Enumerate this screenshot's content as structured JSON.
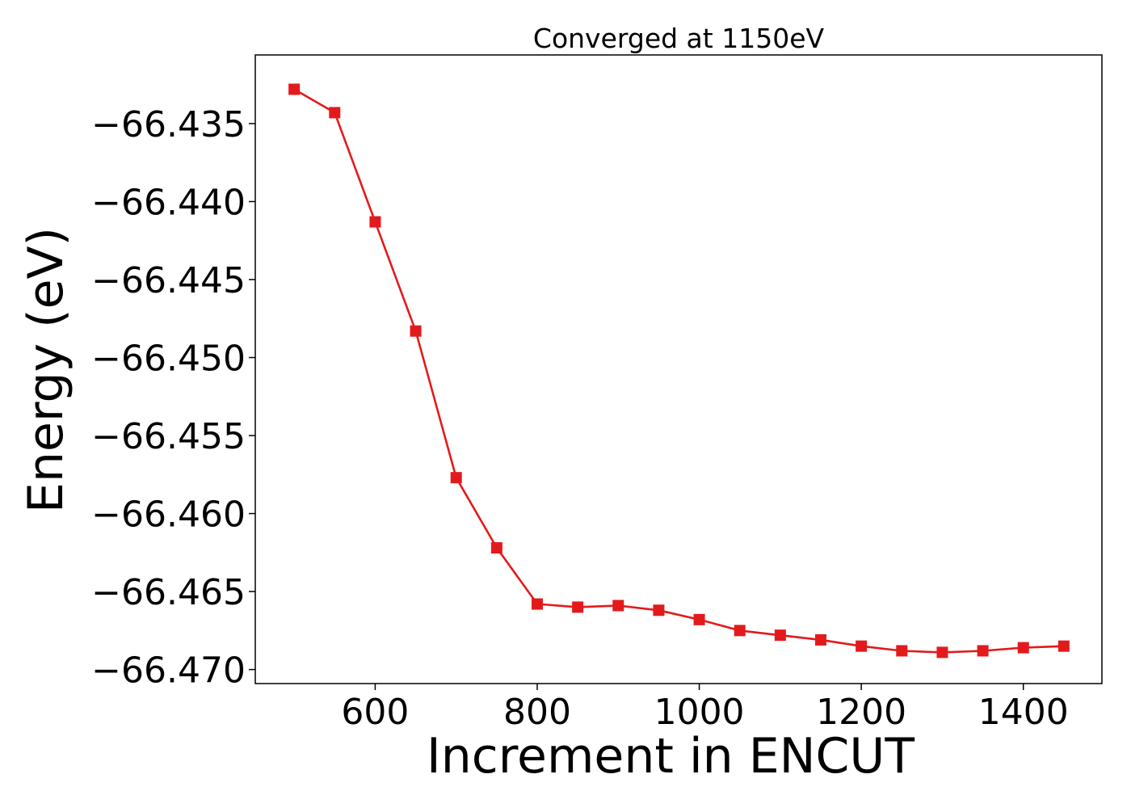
{
  "chart_data": {
    "type": "line",
    "title": "Converged at 1150eV",
    "xlabel": "Increment in ENCUT",
    "ylabel": "Energy (eV)",
    "xlim": [
      452,
      1497
    ],
    "ylim": [
      -66.4709,
      -66.4306
    ],
    "x_ticks": [
      600,
      800,
      1000,
      1200,
      1400
    ],
    "y_ticks": [
      -66.435,
      -66.44,
      -66.445,
      -66.45,
      -66.455,
      -66.46,
      -66.465,
      -66.47
    ],
    "x_tick_labels": [
      "600",
      "800",
      "1000",
      "1200",
      "1400"
    ],
    "y_tick_labels": [
      "−66.435",
      "−66.440",
      "−66.445",
      "−66.450",
      "−66.455",
      "−66.460",
      "−66.465",
      "−66.470"
    ],
    "grid": false,
    "legend": false,
    "series": [
      {
        "color": "#e31a1c",
        "marker": "square",
        "x": [
          500,
          550,
          600,
          650,
          700,
          750,
          800,
          850,
          900,
          950,
          1000,
          1050,
          1100,
          1150,
          1200,
          1250,
          1300,
          1350,
          1400,
          1450
        ],
        "y": [
          -66.4328,
          -66.4343,
          -66.4413,
          -66.4483,
          -66.4577,
          -66.4622,
          -66.4658,
          -66.466,
          -66.4659,
          -66.4662,
          -66.4668,
          -66.4675,
          -66.4678,
          -66.4681,
          -66.4685,
          -66.4688,
          -66.4689,
          -66.4688,
          -66.4686,
          -66.4685
        ]
      }
    ]
  }
}
